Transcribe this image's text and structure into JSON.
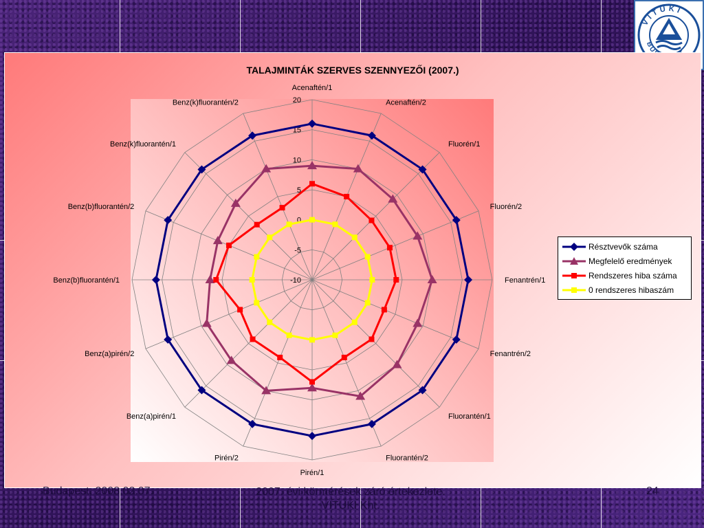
{
  "footer": {
    "date": "Budapest, 2008.02.07.",
    "center": "2007. évi körmérések záró értekezlete. VITUKI Kht.",
    "page": "24"
  },
  "logo": {
    "text": "VITUKI BUDAPEST"
  },
  "chart_data": {
    "type": "radar",
    "title": "TALAJMINTÁK SZERVES SZENNYEZŐI (2007.)",
    "categories": [
      "Acenaftén/1",
      "Acenaftén/2",
      "Fluorén/1",
      "Fluorén/2",
      "Fenantrén/1",
      "Fenantrén/2",
      "Fluorantén/1",
      "Fluorantén/2",
      "Pirén/1",
      "Pirén/2",
      "Benz(a)pirén/1",
      "Benz(a)pirén/2",
      "Benz(b)fluorantén/1",
      "Benz(b)fluorantén/2",
      "Benz(k)fluorantén/1",
      "Benz(k)fluorantén/2"
    ],
    "rlim": [
      -10,
      20
    ],
    "ticks": [
      "-10",
      "-5",
      "0",
      "5",
      "10",
      "15",
      "20"
    ],
    "tick_values": [
      -10,
      -5,
      0,
      5,
      10,
      15,
      20
    ],
    "grid": true,
    "legend_position": "right",
    "series": [
      {
        "name": "Résztvevők száma",
        "color": "#000080",
        "marker": "diamond",
        "values": [
          16,
          16,
          16,
          16,
          16,
          16,
          16,
          16,
          16,
          16,
          16,
          16,
          16,
          16,
          16,
          16
        ]
      },
      {
        "name": "Megfelelő eredmények",
        "color": "#993366",
        "marker": "triangle",
        "values": [
          9,
          10,
          9,
          9,
          10,
          9,
          10,
          11,
          8,
          10,
          9,
          9,
          7,
          7,
          8,
          10
        ]
      },
      {
        "name": "Rendszeres hiba száma",
        "color": "#ff0000",
        "marker": "square",
        "values": [
          6,
          5,
          4,
          4,
          4,
          3,
          4,
          4,
          7,
          4,
          4,
          3,
          6,
          5,
          3,
          3
        ]
      },
      {
        "name": "0 rendszeres hibaszám",
        "color": "#ffff00",
        "marker": "square",
        "values": [
          0,
          0,
          0,
          0,
          0,
          0,
          0,
          0,
          0,
          0,
          0,
          0,
          0,
          0,
          0,
          0
        ]
      }
    ]
  }
}
